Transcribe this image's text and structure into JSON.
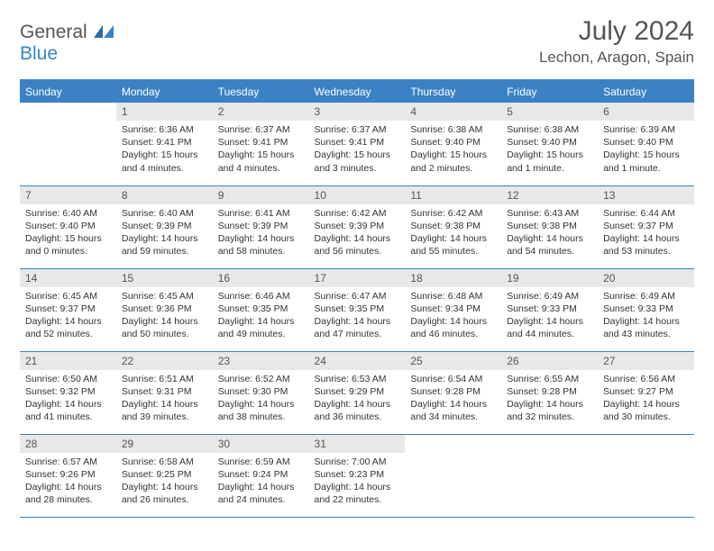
{
  "logo": {
    "word1": "General",
    "word2": "Blue"
  },
  "title": {
    "month": "July 2024",
    "location": "Lechon, Aragon, Spain"
  },
  "colors": {
    "accent": "#3b82c4",
    "daybg": "#e8e8e8",
    "text": "#333333",
    "muted": "#555555"
  },
  "daysOfWeek": [
    "Sunday",
    "Monday",
    "Tuesday",
    "Wednesday",
    "Thursday",
    "Friday",
    "Saturday"
  ],
  "weeks": [
    [
      {
        "day": "",
        "l1": "",
        "l2": "",
        "l3": "",
        "l4": ""
      },
      {
        "day": "1",
        "l1": "Sunrise: 6:36 AM",
        "l2": "Sunset: 9:41 PM",
        "l3": "Daylight: 15 hours",
        "l4": "and 4 minutes."
      },
      {
        "day": "2",
        "l1": "Sunrise: 6:37 AM",
        "l2": "Sunset: 9:41 PM",
        "l3": "Daylight: 15 hours",
        "l4": "and 4 minutes."
      },
      {
        "day": "3",
        "l1": "Sunrise: 6:37 AM",
        "l2": "Sunset: 9:41 PM",
        "l3": "Daylight: 15 hours",
        "l4": "and 3 minutes."
      },
      {
        "day": "4",
        "l1": "Sunrise: 6:38 AM",
        "l2": "Sunset: 9:40 PM",
        "l3": "Daylight: 15 hours",
        "l4": "and 2 minutes."
      },
      {
        "day": "5",
        "l1": "Sunrise: 6:38 AM",
        "l2": "Sunset: 9:40 PM",
        "l3": "Daylight: 15 hours",
        "l4": "and 1 minute."
      },
      {
        "day": "6",
        "l1": "Sunrise: 6:39 AM",
        "l2": "Sunset: 9:40 PM",
        "l3": "Daylight: 15 hours",
        "l4": "and 1 minute."
      }
    ],
    [
      {
        "day": "7",
        "l1": "Sunrise: 6:40 AM",
        "l2": "Sunset: 9:40 PM",
        "l3": "Daylight: 15 hours",
        "l4": "and 0 minutes."
      },
      {
        "day": "8",
        "l1": "Sunrise: 6:40 AM",
        "l2": "Sunset: 9:39 PM",
        "l3": "Daylight: 14 hours",
        "l4": "and 59 minutes."
      },
      {
        "day": "9",
        "l1": "Sunrise: 6:41 AM",
        "l2": "Sunset: 9:39 PM",
        "l3": "Daylight: 14 hours",
        "l4": "and 58 minutes."
      },
      {
        "day": "10",
        "l1": "Sunrise: 6:42 AM",
        "l2": "Sunset: 9:39 PM",
        "l3": "Daylight: 14 hours",
        "l4": "and 56 minutes."
      },
      {
        "day": "11",
        "l1": "Sunrise: 6:42 AM",
        "l2": "Sunset: 9:38 PM",
        "l3": "Daylight: 14 hours",
        "l4": "and 55 minutes."
      },
      {
        "day": "12",
        "l1": "Sunrise: 6:43 AM",
        "l2": "Sunset: 9:38 PM",
        "l3": "Daylight: 14 hours",
        "l4": "and 54 minutes."
      },
      {
        "day": "13",
        "l1": "Sunrise: 6:44 AM",
        "l2": "Sunset: 9:37 PM",
        "l3": "Daylight: 14 hours",
        "l4": "and 53 minutes."
      }
    ],
    [
      {
        "day": "14",
        "l1": "Sunrise: 6:45 AM",
        "l2": "Sunset: 9:37 PM",
        "l3": "Daylight: 14 hours",
        "l4": "and 52 minutes."
      },
      {
        "day": "15",
        "l1": "Sunrise: 6:45 AM",
        "l2": "Sunset: 9:36 PM",
        "l3": "Daylight: 14 hours",
        "l4": "and 50 minutes."
      },
      {
        "day": "16",
        "l1": "Sunrise: 6:46 AM",
        "l2": "Sunset: 9:35 PM",
        "l3": "Daylight: 14 hours",
        "l4": "and 49 minutes."
      },
      {
        "day": "17",
        "l1": "Sunrise: 6:47 AM",
        "l2": "Sunset: 9:35 PM",
        "l3": "Daylight: 14 hours",
        "l4": "and 47 minutes."
      },
      {
        "day": "18",
        "l1": "Sunrise: 6:48 AM",
        "l2": "Sunset: 9:34 PM",
        "l3": "Daylight: 14 hours",
        "l4": "and 46 minutes."
      },
      {
        "day": "19",
        "l1": "Sunrise: 6:49 AM",
        "l2": "Sunset: 9:33 PM",
        "l3": "Daylight: 14 hours",
        "l4": "and 44 minutes."
      },
      {
        "day": "20",
        "l1": "Sunrise: 6:49 AM",
        "l2": "Sunset: 9:33 PM",
        "l3": "Daylight: 14 hours",
        "l4": "and 43 minutes."
      }
    ],
    [
      {
        "day": "21",
        "l1": "Sunrise: 6:50 AM",
        "l2": "Sunset: 9:32 PM",
        "l3": "Daylight: 14 hours",
        "l4": "and 41 minutes."
      },
      {
        "day": "22",
        "l1": "Sunrise: 6:51 AM",
        "l2": "Sunset: 9:31 PM",
        "l3": "Daylight: 14 hours",
        "l4": "and 39 minutes."
      },
      {
        "day": "23",
        "l1": "Sunrise: 6:52 AM",
        "l2": "Sunset: 9:30 PM",
        "l3": "Daylight: 14 hours",
        "l4": "and 38 minutes."
      },
      {
        "day": "24",
        "l1": "Sunrise: 6:53 AM",
        "l2": "Sunset: 9:29 PM",
        "l3": "Daylight: 14 hours",
        "l4": "and 36 minutes."
      },
      {
        "day": "25",
        "l1": "Sunrise: 6:54 AM",
        "l2": "Sunset: 9:28 PM",
        "l3": "Daylight: 14 hours",
        "l4": "and 34 minutes."
      },
      {
        "day": "26",
        "l1": "Sunrise: 6:55 AM",
        "l2": "Sunset: 9:28 PM",
        "l3": "Daylight: 14 hours",
        "l4": "and 32 minutes."
      },
      {
        "day": "27",
        "l1": "Sunrise: 6:56 AM",
        "l2": "Sunset: 9:27 PM",
        "l3": "Daylight: 14 hours",
        "l4": "and 30 minutes."
      }
    ],
    [
      {
        "day": "28",
        "l1": "Sunrise: 6:57 AM",
        "l2": "Sunset: 9:26 PM",
        "l3": "Daylight: 14 hours",
        "l4": "and 28 minutes."
      },
      {
        "day": "29",
        "l1": "Sunrise: 6:58 AM",
        "l2": "Sunset: 9:25 PM",
        "l3": "Daylight: 14 hours",
        "l4": "and 26 minutes."
      },
      {
        "day": "30",
        "l1": "Sunrise: 6:59 AM",
        "l2": "Sunset: 9:24 PM",
        "l3": "Daylight: 14 hours",
        "l4": "and 24 minutes."
      },
      {
        "day": "31",
        "l1": "Sunrise: 7:00 AM",
        "l2": "Sunset: 9:23 PM",
        "l3": "Daylight: 14 hours",
        "l4": "and 22 minutes."
      },
      {
        "day": "",
        "l1": "",
        "l2": "",
        "l3": "",
        "l4": ""
      },
      {
        "day": "",
        "l1": "",
        "l2": "",
        "l3": "",
        "l4": ""
      },
      {
        "day": "",
        "l1": "",
        "l2": "",
        "l3": "",
        "l4": ""
      }
    ]
  ]
}
